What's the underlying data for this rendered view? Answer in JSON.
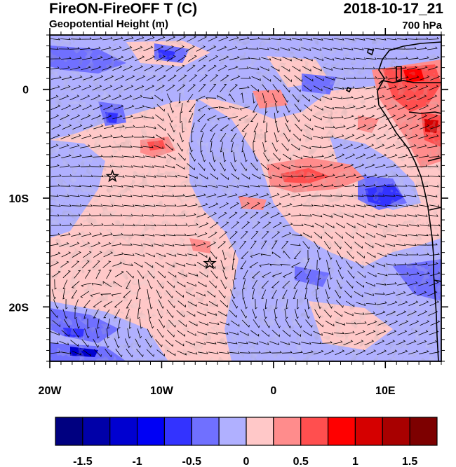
{
  "header": {
    "left_title": "FireON-FireOFF T (C)",
    "left_subtitle": "Geopotential Height (m)",
    "right_title": "2018-10-17_21",
    "right_subtitle": "700 hPa"
  },
  "map": {
    "lon_range": [
      -20,
      15
    ],
    "lat_range": [
      -25,
      5
    ],
    "x_ticks": [
      {
        "value": -20,
        "label": "20W"
      },
      {
        "value": -10,
        "label": "10W"
      },
      {
        "value": 0,
        "label": "0"
      },
      {
        "value": 10,
        "label": "10E"
      }
    ],
    "y_ticks": [
      {
        "value": 0,
        "label": "0"
      },
      {
        "value": -10,
        "label": "10S"
      },
      {
        "value": -20,
        "label": "20S"
      }
    ],
    "markers": [
      {
        "name": "star-marker-1",
        "lon": -14.4,
        "lat": -8.0
      },
      {
        "name": "star-marker-2",
        "lon": -5.7,
        "lat": -16.0
      }
    ]
  },
  "colorbar": {
    "colors": [
      "#000080",
      "#0000a8",
      "#0000d0",
      "#0000f5",
      "#3333ff",
      "#7070ff",
      "#b0b0ff",
      "#ffc8c8",
      "#ff8c8c",
      "#ff4f4f",
      "#ff0000",
      "#d50000",
      "#a80000",
      "#7d0000"
    ],
    "ticks": [
      "-1.5",
      "-1",
      "-0.5",
      "0",
      "0.5",
      "1",
      "1.5"
    ]
  }
}
